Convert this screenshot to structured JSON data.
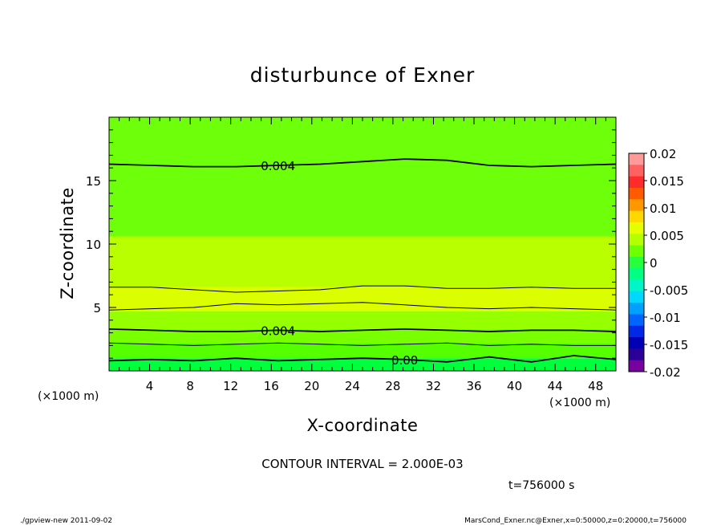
{
  "chart_data": {
    "type": "heatmap",
    "title": "disturbunce of Exner",
    "xlabel": "X-coordinate",
    "ylabel": "Z-coordinate",
    "x_unit": "(×1000 m)",
    "z_unit": "(×1000 m)",
    "xlim": [
      0,
      50
    ],
    "ylim": [
      0,
      20
    ],
    "x_ticks": [
      4,
      8,
      12,
      16,
      20,
      24,
      28,
      32,
      36,
      40,
      44,
      48
    ],
    "y_ticks": [
      5,
      10,
      15
    ],
    "colorbar": {
      "ticks": [
        "0.02",
        "0.015",
        "0.01",
        "0.005",
        "0",
        "-0.005",
        "-0.01",
        "-0.015",
        "-0.02"
      ],
      "range": [
        -0.02,
        0.02
      ],
      "colors": [
        "#ff9a9a",
        "#ff6060",
        "#ff2a2a",
        "#ff5a00",
        "#ff9800",
        "#ffd800",
        "#e6ff00",
        "#b4ff00",
        "#6eff00",
        "#28ff3c",
        "#00ff82",
        "#00f5c8",
        "#00d8ff",
        "#00a0ff",
        "#0064ff",
        "#0028e6",
        "#0000b4",
        "#2a0096",
        "#7800a0"
      ]
    },
    "bands": [
      {
        "z": [
          0,
          1.0
        ],
        "color": "#00ff3c"
      },
      {
        "z": [
          1.0,
          2.2
        ],
        "color": "#55ff00"
      },
      {
        "z": [
          2.2,
          3.3
        ],
        "color": "#78ff00"
      },
      {
        "z": [
          3.3,
          4.7
        ],
        "color": "#96ff00"
      },
      {
        "z": [
          4.7,
          6.6
        ],
        "color": "#dcff00"
      },
      {
        "z": [
          6.6,
          10.6
        ],
        "color": "#b9ff00"
      },
      {
        "z": [
          10.6,
          20
        ],
        "color": "#6eff0a"
      }
    ],
    "contours": [
      {
        "level": "0.004",
        "z": [
          16.3,
          16.2,
          16.1,
          16.1,
          16.2,
          16.3,
          16.5,
          16.7,
          16.6,
          16.2,
          16.1,
          16.2,
          16.3
        ]
      },
      {
        "level": "",
        "z": [
          6.6,
          6.6,
          6.4,
          6.2,
          6.3,
          6.4,
          6.7,
          6.7,
          6.5,
          6.5,
          6.6,
          6.5,
          6.5
        ]
      },
      {
        "level": "",
        "z": [
          4.8,
          4.9,
          5.0,
          5.3,
          5.2,
          5.3,
          5.4,
          5.2,
          5.0,
          4.9,
          5.0,
          4.9,
          4.8
        ]
      },
      {
        "level": "0.004",
        "z": [
          3.3,
          3.2,
          3.1,
          3.1,
          3.2,
          3.1,
          3.2,
          3.3,
          3.2,
          3.1,
          3.2,
          3.2,
          3.1
        ]
      },
      {
        "level": "",
        "z": [
          2.2,
          2.1,
          2.0,
          2.1,
          2.2,
          2.1,
          2.0,
          2.1,
          2.2,
          2.0,
          2.1,
          2.0,
          2.0
        ]
      },
      {
        "level": "0.00",
        "z": [
          0.8,
          0.9,
          0.8,
          1.0,
          0.8,
          0.9,
          1.0,
          0.9,
          0.7,
          1.1,
          0.7,
          1.2,
          0.9
        ]
      }
    ],
    "contour_interval": "CONTOUR INTERVAL = 2.000E-03",
    "time": "t=756000 s"
  },
  "footer": {
    "left": "./gpview-new   2011-09-02",
    "right": "MarsCond_Exner.nc@Exner,x=0:50000,z=0:20000,t=756000"
  }
}
